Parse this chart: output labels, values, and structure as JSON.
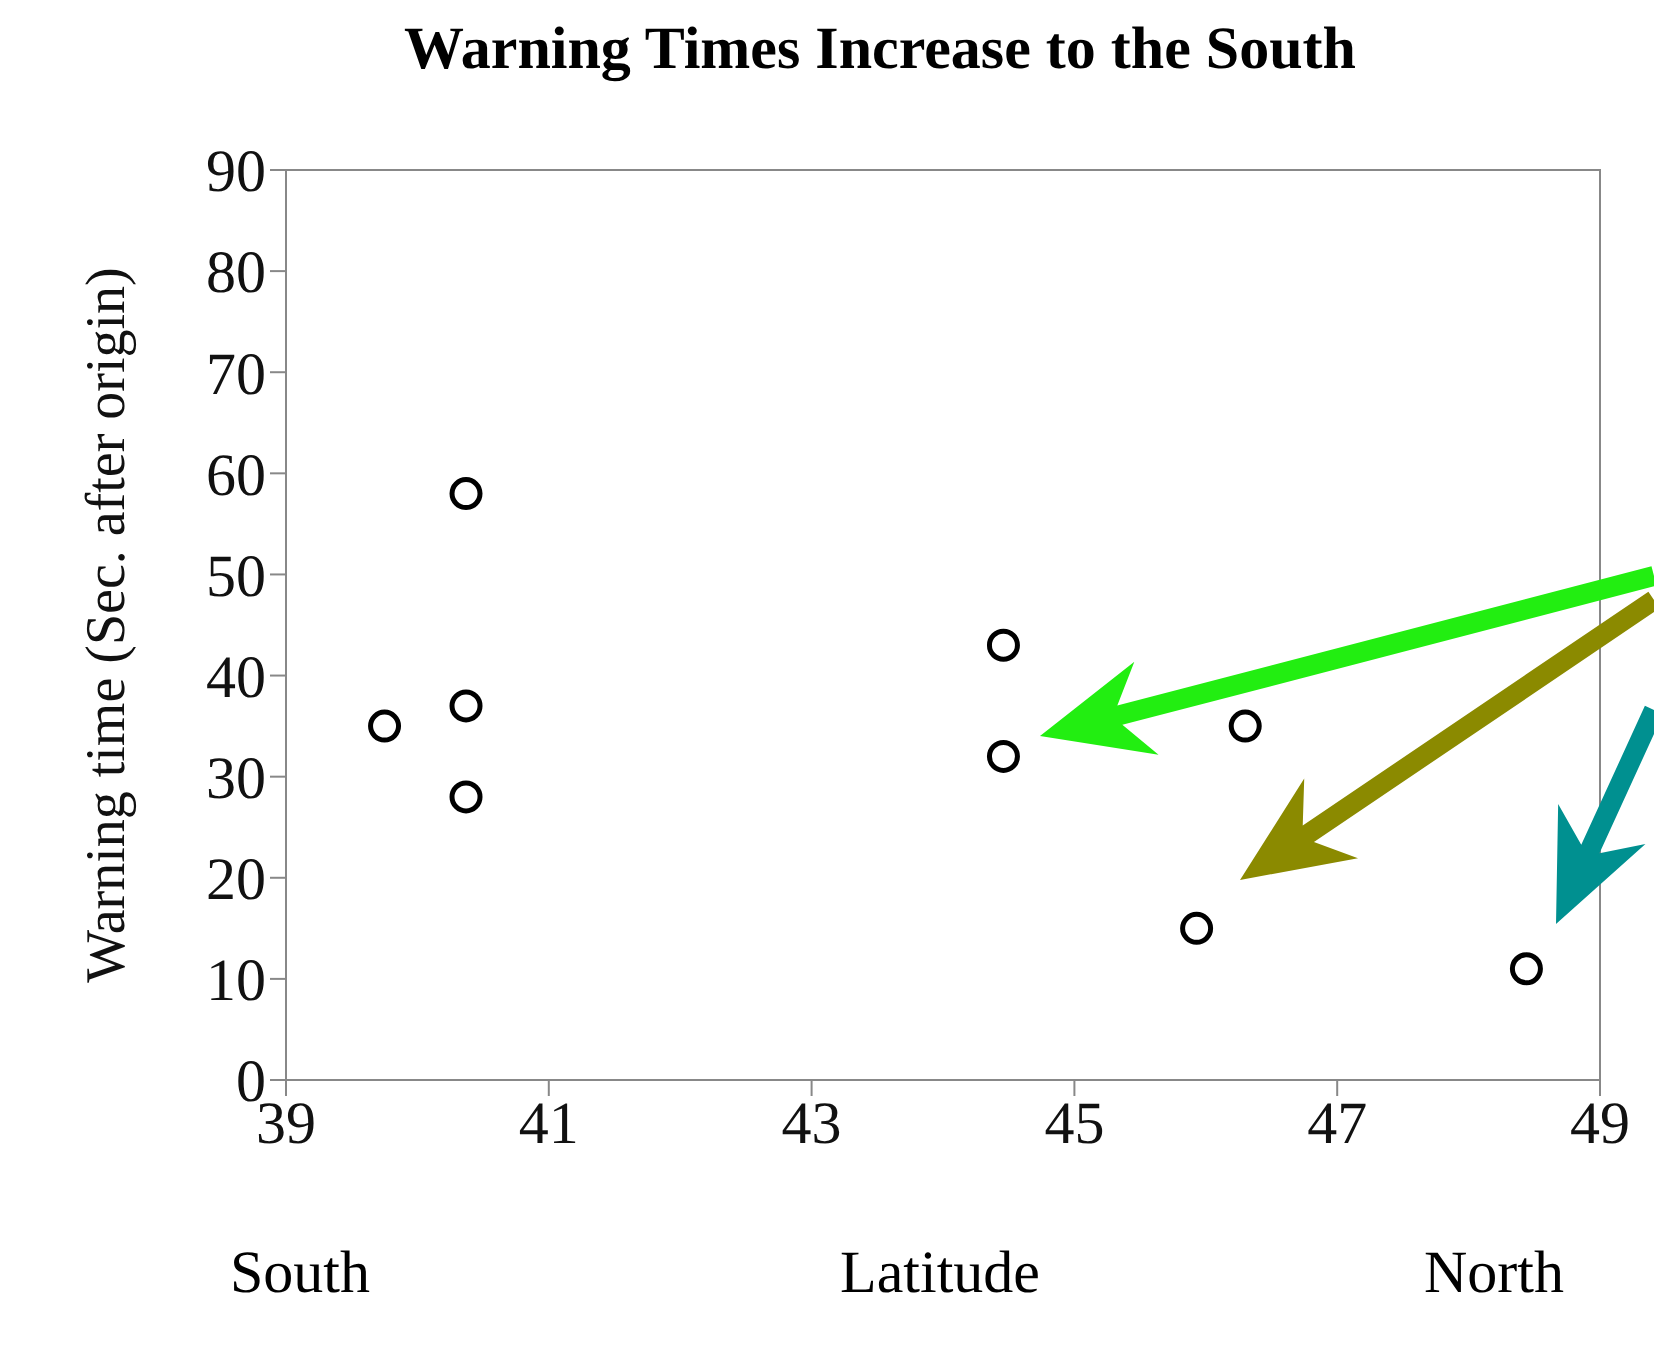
{
  "chart_data": {
    "type": "scatter",
    "title": "Warning Times Increase to the South",
    "xlabel": "Latitude",
    "ylabel": "Warning time (Sec. after origin)",
    "annotations": [
      "South",
      "North"
    ],
    "x": [
      39.75,
      40.37,
      40.37,
      40.37,
      44.46,
      44.46,
      46.3,
      45.93,
      48.44
    ],
    "series": [
      {
        "color": "#000000",
        "values": [
          35,
          58,
          37,
          28,
          43,
          32,
          35,
          15,
          11
        ]
      }
    ],
    "xlim": [
      39,
      49
    ],
    "xticks": [
      39,
      41,
      43,
      45,
      47,
      49
    ],
    "ylim": [
      0,
      90
    ],
    "yticks": [
      0,
      10,
      20,
      30,
      40,
      50,
      60,
      70,
      80,
      90
    ],
    "grid": false,
    "legend": false,
    "marker": "circle"
  }
}
